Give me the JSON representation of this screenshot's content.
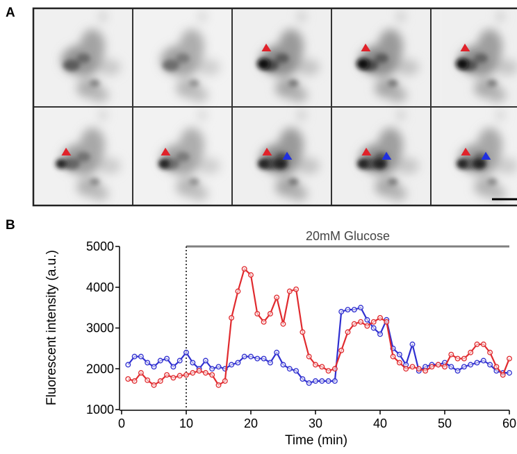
{
  "panel_a": {
    "label": "A"
  },
  "chart_data": {
    "type": "line",
    "panel_label": "B",
    "x_label": "Time (min)",
    "y_label": "Fluorescent intensity (a.u.)",
    "x": [
      1,
      2,
      3,
      4,
      5,
      6,
      7,
      8,
      9,
      10,
      11,
      12,
      13,
      14,
      15,
      16,
      17,
      18,
      19,
      20,
      21,
      22,
      23,
      24,
      25,
      26,
      27,
      28,
      29,
      30,
      31,
      32,
      33,
      34,
      35,
      36,
      37,
      38,
      39,
      40,
      41,
      42,
      43,
      44,
      45,
      46,
      47,
      48,
      49,
      50,
      51,
      52,
      53,
      54,
      55,
      56,
      57,
      58,
      59,
      60
    ],
    "series": [
      {
        "color": "#2f2fd0",
        "values": [
          2100,
          2300,
          2300,
          2150,
          2050,
          2200,
          2250,
          2050,
          2200,
          2400,
          2150,
          2000,
          2200,
          2000,
          2050,
          2000,
          2100,
          2150,
          2300,
          2300,
          2250,
          2250,
          2150,
          2400,
          2100,
          2000,
          1950,
          1750,
          1650,
          1700,
          1700,
          1700,
          1700,
          3400,
          3450,
          3450,
          3500,
          3200,
          3000,
          2850,
          3200,
          2500,
          2350,
          2100,
          2600,
          1950,
          2050,
          2100,
          2100,
          2150,
          2050,
          1950,
          2050,
          2100,
          2150,
          2200,
          2100,
          1950,
          1900,
          1900
        ]
      },
      {
        "color": "#e02a2e",
        "values": [
          1750,
          1700,
          1900,
          1720,
          1600,
          1700,
          1850,
          1780,
          1830,
          1850,
          1900,
          1950,
          1900,
          1850,
          1600,
          1700,
          3250,
          3900,
          4450,
          4300,
          3350,
          3150,
          3350,
          3750,
          3100,
          3900,
          3950,
          2900,
          2300,
          2100,
          2050,
          1950,
          2000,
          2450,
          2900,
          3100,
          3150,
          3050,
          3150,
          3250,
          3150,
          2300,
          2150,
          2000,
          2050,
          2000,
          1950,
          2050,
          2100,
          2050,
          2350,
          2250,
          2250,
          2400,
          2600,
          2600,
          2400,
          2050,
          1850,
          2250
        ]
      }
    ],
    "xlim": [
      0,
      60
    ],
    "xticks": [
      0,
      10,
      20,
      30,
      40,
      50,
      60
    ],
    "ylim": [
      1000,
      5000
    ],
    "yticks": [
      1000,
      2000,
      3000,
      4000,
      5000
    ],
    "annotation": {
      "text": "20mM Glucose",
      "x_start": 10,
      "x_end": 60,
      "y": 5000
    }
  }
}
